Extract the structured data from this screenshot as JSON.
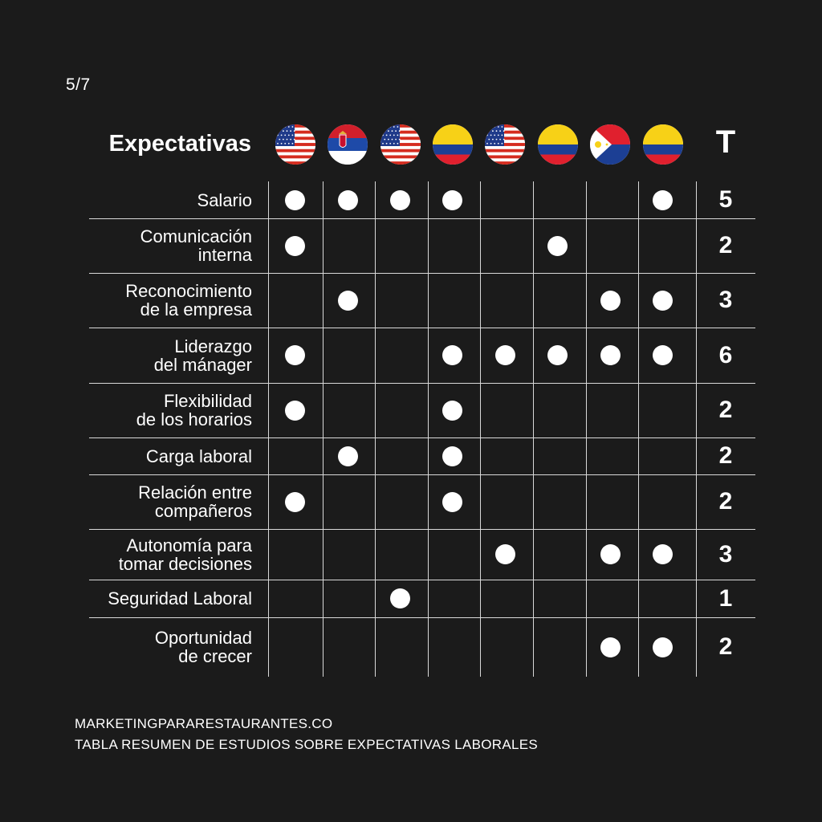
{
  "page_number": "5/7",
  "footer": {
    "site": "MARKETINGPARARESTAURANTES.CO",
    "caption": "TABLA RESUMEN DE ESTUDIOS SOBRE EXPECTATIVAS LABORALES"
  },
  "colors": {
    "background": "#1b1b1b",
    "foreground": "#ffffff",
    "grid": "#d9d9d9"
  },
  "chart_data": {
    "type": "table",
    "title": "Expectativas",
    "total_label": "T",
    "columns": [
      {
        "flag": "usa-flag-icon"
      },
      {
        "flag": "serbia-flag-icon"
      },
      {
        "flag": "usa-flag-icon"
      },
      {
        "flag": "colombia-flag-icon"
      },
      {
        "flag": "usa-flag-icon"
      },
      {
        "flag": "colombia-flag-icon"
      },
      {
        "flag": "philippines-flag-icon"
      },
      {
        "flag": "colombia-flag-icon"
      }
    ],
    "rows": [
      {
        "label": "Salario",
        "marks": [
          1,
          1,
          1,
          1,
          0,
          0,
          0,
          1
        ],
        "total": "5"
      },
      {
        "label": "Comunicación\ninterna",
        "marks": [
          1,
          0,
          0,
          0,
          0,
          1,
          0,
          0
        ],
        "total": "2"
      },
      {
        "label": "Reconocimiento\nde la empresa",
        "marks": [
          0,
          1,
          0,
          0,
          0,
          0,
          1,
          1
        ],
        "total": "3"
      },
      {
        "label": "Liderazgo\ndel mánager",
        "marks": [
          1,
          0,
          0,
          1,
          1,
          1,
          1,
          1
        ],
        "total": "6"
      },
      {
        "label": "Flexibilidad\nde los horarios",
        "marks": [
          1,
          0,
          0,
          1,
          0,
          0,
          0,
          0
        ],
        "total": "2"
      },
      {
        "label": "Carga laboral",
        "marks": [
          0,
          1,
          0,
          1,
          0,
          0,
          0,
          0
        ],
        "total": "2"
      },
      {
        "label": "Relación entre\ncompañeros",
        "marks": [
          1,
          0,
          0,
          1,
          0,
          0,
          0,
          0
        ],
        "total": "2"
      },
      {
        "label": "Autonomía para\ntomar decisiones",
        "marks": [
          0,
          0,
          0,
          0,
          1,
          0,
          1,
          1
        ],
        "total": "3"
      },
      {
        "label": "Seguridad Laboral",
        "marks": [
          0,
          0,
          1,
          0,
          0,
          0,
          0,
          0
        ],
        "total": "1"
      },
      {
        "label": "Oportunidad\nde crecer",
        "marks": [
          0,
          0,
          0,
          0,
          0,
          0,
          1,
          1
        ],
        "total": "2"
      }
    ]
  }
}
